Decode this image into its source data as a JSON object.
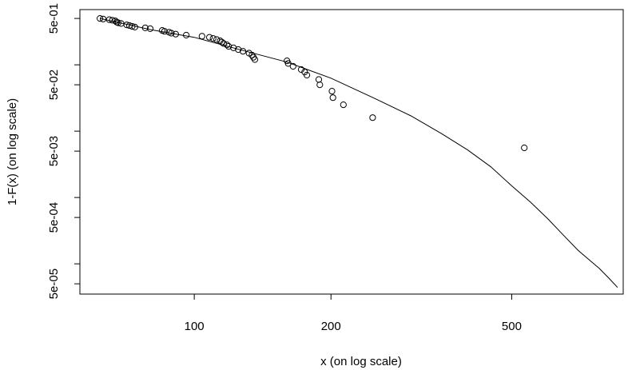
{
  "chart_data": {
    "type": "scatter",
    "title": "",
    "xlabel": "x (on log scale)",
    "ylabel": "1-F(x) (on log scale)",
    "x_scale": "log",
    "y_scale": "log",
    "xlim": [
      56,
      880
    ],
    "ylim": [
      3.5e-05,
      0.68
    ],
    "grid": false,
    "legend": "none",
    "x_ticks": [
      {
        "value": 100,
        "label": "100"
      },
      {
        "value": 200,
        "label": "200"
      },
      {
        "value": 500,
        "label": "500"
      }
    ],
    "y_ticks": [
      {
        "value": 0.5,
        "label": "5e-01"
      },
      {
        "value": 0.1,
        "label": ""
      },
      {
        "value": 0.05,
        "label": "5e-02"
      },
      {
        "value": 0.01,
        "label": ""
      },
      {
        "value": 0.005,
        "label": "5e-03"
      },
      {
        "value": 0.001,
        "label": ""
      },
      {
        "value": 0.0005,
        "label": "5e-04"
      },
      {
        "value": 0.0001,
        "label": ""
      },
      {
        "value": 5e-05,
        "label": "5e-05"
      }
    ],
    "points": [
      [
        62,
        0.5
      ],
      [
        63,
        0.49
      ],
      [
        65,
        0.48
      ],
      [
        66,
        0.47
      ],
      [
        67,
        0.46
      ],
      [
        67.5,
        0.44
      ],
      [
        68,
        0.43
      ],
      [
        69,
        0.42
      ],
      [
        71,
        0.4
      ],
      [
        72,
        0.39
      ],
      [
        73,
        0.38
      ],
      [
        74,
        0.37
      ],
      [
        78,
        0.36
      ],
      [
        80,
        0.35
      ],
      [
        85,
        0.33
      ],
      [
        86,
        0.32
      ],
      [
        88,
        0.31
      ],
      [
        89,
        0.3
      ],
      [
        91,
        0.29
      ],
      [
        96,
        0.28
      ],
      [
        104,
        0.27
      ],
      [
        108,
        0.26
      ],
      [
        110,
        0.25
      ],
      [
        112,
        0.24
      ],
      [
        114,
        0.23
      ],
      [
        115,
        0.22
      ],
      [
        116,
        0.21
      ],
      [
        118,
        0.2
      ],
      [
        119,
        0.19
      ],
      [
        122,
        0.18
      ],
      [
        125,
        0.17
      ],
      [
        128,
        0.16
      ],
      [
        132,
        0.15
      ],
      [
        134,
        0.14
      ],
      [
        135,
        0.13
      ],
      [
        136,
        0.12
      ],
      [
        160,
        0.115
      ],
      [
        161,
        0.105
      ],
      [
        165,
        0.095
      ],
      [
        172,
        0.085
      ],
      [
        175,
        0.078
      ],
      [
        177,
        0.07
      ],
      [
        188,
        0.06
      ],
      [
        189,
        0.05
      ],
      [
        201,
        0.04
      ],
      [
        202,
        0.032
      ],
      [
        213,
        0.025
      ],
      [
        247,
        0.016
      ],
      [
        533,
        0.0056
      ]
    ],
    "fitted_line": [
      [
        62,
        0.5
      ],
      [
        80,
        0.34
      ],
      [
        100,
        0.26
      ],
      [
        130,
        0.16
      ],
      [
        160,
        0.11
      ],
      [
        200,
        0.063
      ],
      [
        250,
        0.031
      ],
      [
        300,
        0.017
      ],
      [
        350,
        0.0092
      ],
      [
        400,
        0.0052
      ],
      [
        450,
        0.0029
      ],
      [
        500,
        0.0015
      ],
      [
        550,
        0.00085
      ],
      [
        600,
        0.00048
      ],
      [
        650,
        0.00027
      ],
      [
        700,
        0.00016
      ],
      [
        780,
        8.5e-05
      ],
      [
        820,
        6e-05
      ],
      [
        855,
        4.4e-05
      ]
    ]
  }
}
